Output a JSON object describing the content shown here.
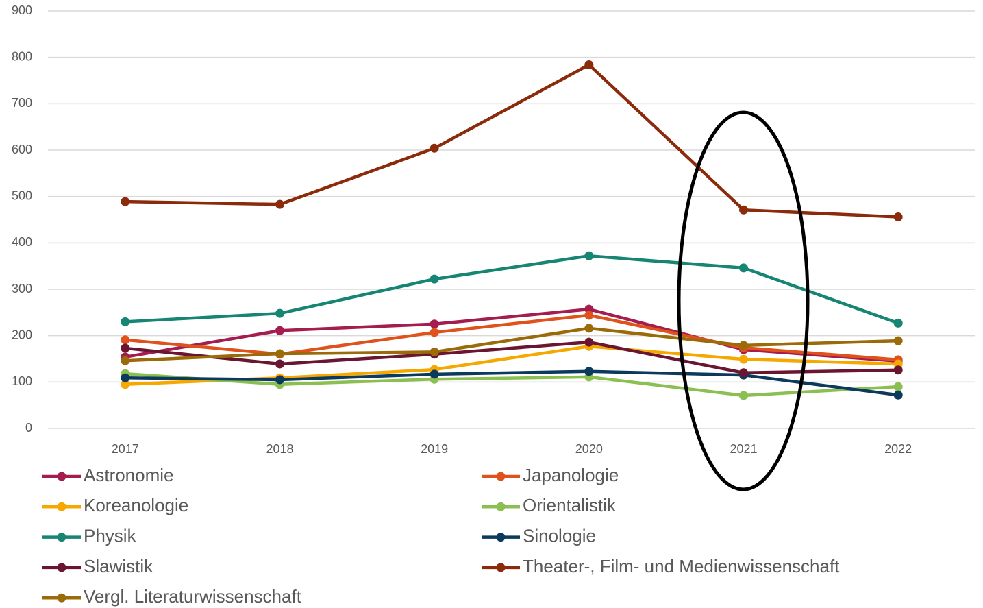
{
  "chart_data": {
    "type": "line",
    "categories": [
      "2017",
      "2018",
      "2019",
      "2020",
      "2021",
      "2022"
    ],
    "series": [
      {
        "name": "Astronomie",
        "color": "#a51c4e",
        "values": [
          154,
          211,
          225,
          257,
          170,
          145
        ]
      },
      {
        "name": "Japanologie",
        "color": "#e0521c",
        "values": [
          191,
          160,
          207,
          244,
          174,
          148
        ]
      },
      {
        "name": "Koreanologie",
        "color": "#f5a800",
        "values": [
          95,
          109,
          127,
          177,
          149,
          139
        ]
      },
      {
        "name": "Orientalistik",
        "color": "#8cbf52",
        "values": [
          118,
          95,
          106,
          111,
          71,
          90
        ]
      },
      {
        "name": "Physik",
        "color": "#168574",
        "values": [
          230,
          248,
          322,
          372,
          346,
          227
        ]
      },
      {
        "name": "Sinologie",
        "color": "#0b3a5c",
        "values": [
          109,
          105,
          117,
          123,
          115,
          72
        ]
      },
      {
        "name": "Slawistik",
        "color": "#6b1630",
        "values": [
          173,
          139,
          160,
          186,
          120,
          126
        ]
      },
      {
        "name": "Theater-, Film- und Medienwissenschaft",
        "color": "#8c2a0c",
        "values": [
          489,
          483,
          604,
          784,
          471,
          456
        ]
      },
      {
        "name": "Vergl. Literaturwissenschaft",
        "color": "#9a6b08",
        "values": [
          146,
          161,
          165,
          216,
          179,
          189
        ]
      }
    ],
    "ylim": [
      0,
      900
    ],
    "yticks": [
      0,
      100,
      200,
      300,
      400,
      500,
      600,
      700,
      800,
      900
    ],
    "grid": true
  }
}
